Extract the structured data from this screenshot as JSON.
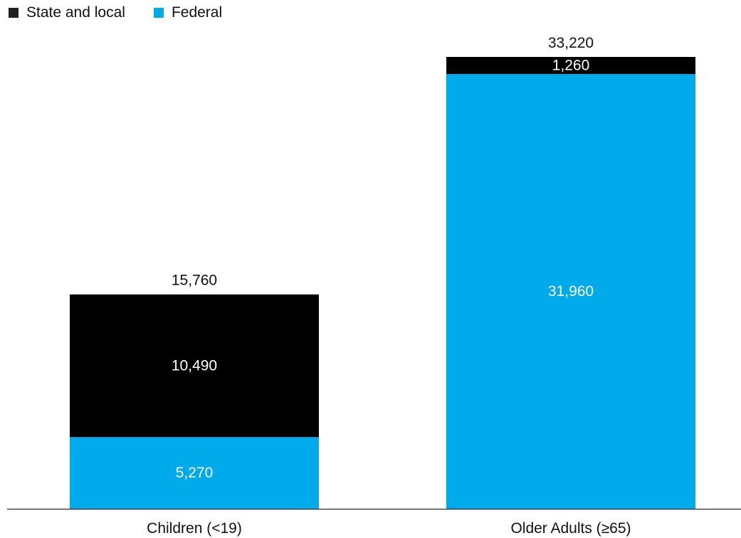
{
  "chart_data": {
    "type": "bar",
    "stacked": true,
    "categories": [
      "Children (<19)",
      "Older Adults (≥65)"
    ],
    "series": [
      {
        "name": "Federal",
        "values": [
          5270,
          31960
        ],
        "labels": [
          "5,270",
          "31,960"
        ],
        "color": "#00aaeb"
      },
      {
        "name": "State and local",
        "values": [
          10490,
          1260
        ],
        "labels": [
          "10,490",
          "1,260"
        ],
        "color": "#000000"
      }
    ],
    "totals": [
      15760,
      33220
    ],
    "total_labels": [
      "15,760",
      "33,220"
    ],
    "ylim": [
      0,
      33220
    ],
    "legend_position": "top-left",
    "grid": false
  },
  "legend": [
    {
      "label": "State and local",
      "color": "#000000",
      "swatch_color": "#222222"
    },
    {
      "label": "Federal",
      "color": "#00aaeb"
    }
  ]
}
